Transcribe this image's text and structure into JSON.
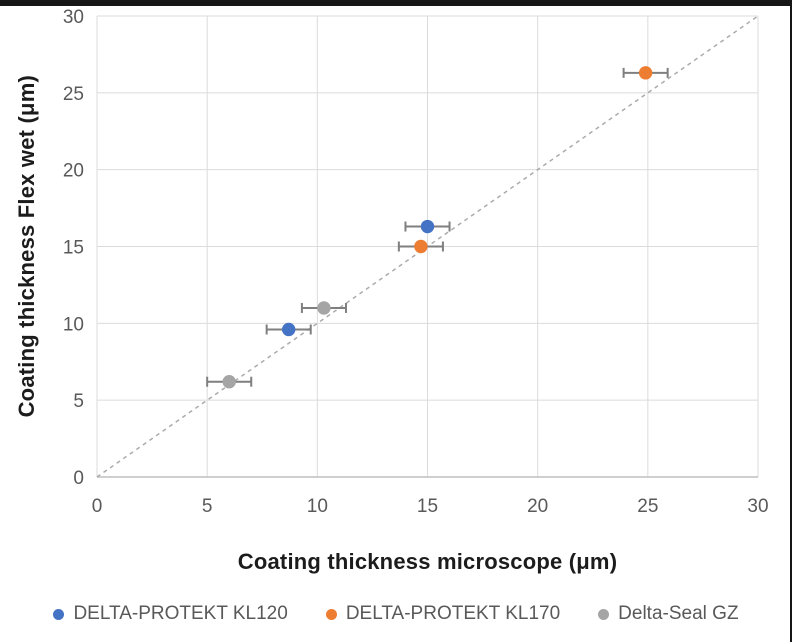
{
  "page": {
    "background": "#ffffff",
    "top_border_color": "#161616",
    "right_border_color": "#161616"
  },
  "chart_data": {
    "type": "scatter",
    "title": "",
    "xlabel": "Coating thickness microscope (μm)",
    "ylabel": "Coating thickness Flex wet (μm)",
    "ylabel_parts": {
      "prefix": "Coating thickness Flex ",
      "bold": "wet",
      "suffix": " (μm)"
    },
    "xlim": [
      0,
      30
    ],
    "ylim": [
      0,
      30
    ],
    "xticks": [
      0,
      5,
      10,
      15,
      20,
      25,
      30
    ],
    "yticks": [
      0,
      5,
      10,
      15,
      20,
      25,
      30
    ],
    "grid": true,
    "legend_position": "bottom",
    "identity_line": {
      "style": "dashed",
      "from": [
        0,
        0
      ],
      "to": [
        30,
        30
      ],
      "color": "#ABABAB"
    },
    "series": [
      {
        "name": "DELTA-PROTEKT KL120",
        "color": "#4472C4",
        "points": [
          {
            "x": 8.7,
            "y": 9.6,
            "xerr": 1.0
          },
          {
            "x": 15.0,
            "y": 16.3,
            "xerr": 1.0
          }
        ]
      },
      {
        "name": "DELTA-PROTEKT KL170",
        "color": "#ED7D31",
        "points": [
          {
            "x": 14.7,
            "y": 15.0,
            "xerr": 1.0
          },
          {
            "x": 24.9,
            "y": 26.3,
            "xerr": 1.0
          }
        ]
      },
      {
        "name": "Delta-Seal GZ",
        "color": "#A5A5A5",
        "points": [
          {
            "x": 6.0,
            "y": 6.2,
            "xerr": 1.0
          },
          {
            "x": 10.3,
            "y": 11.0,
            "xerr": 1.0
          }
        ]
      }
    ],
    "style": {
      "error_bar_color": "#7F7F7F",
      "gridline_color": "#DBDBDB",
      "axis_line_color": "#BFBFBF",
      "tick_label_color": "#595959",
      "marker_radius": 6.7
    }
  }
}
